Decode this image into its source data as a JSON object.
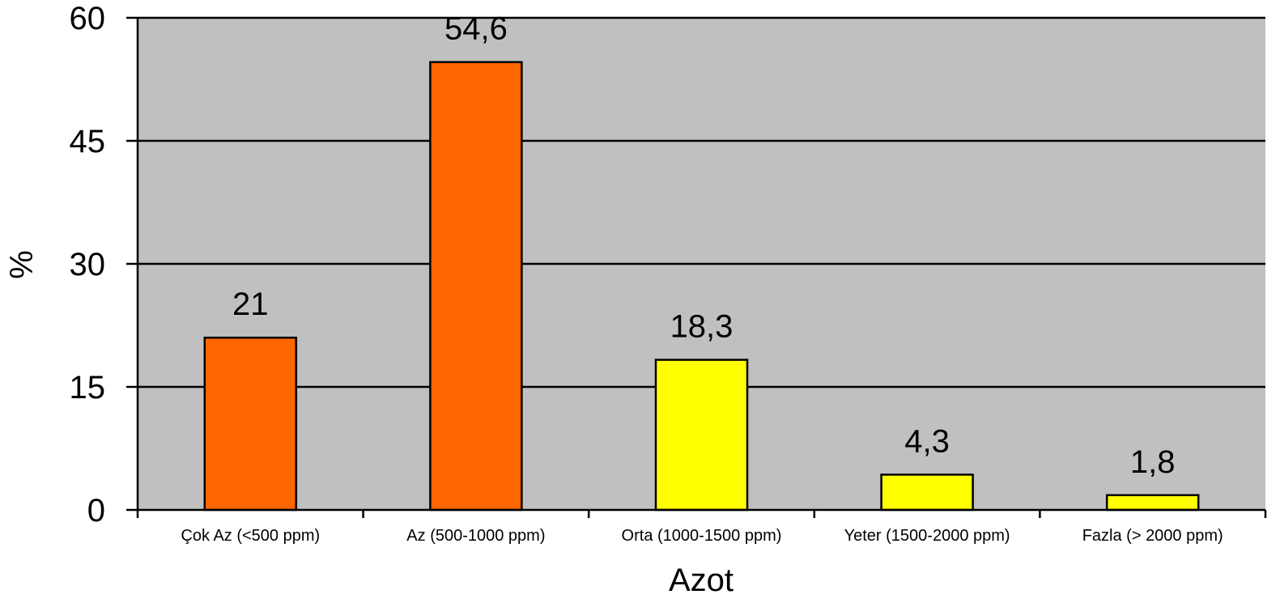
{
  "chart_data": {
    "type": "bar",
    "title": "",
    "xlabel": "Azot",
    "ylabel": "%",
    "ylim": [
      0,
      60
    ],
    "yticks": [
      0,
      15,
      30,
      45,
      60
    ],
    "grid": true,
    "categories": [
      "Çok Az (<500 ppm)",
      "Az (500-1000 ppm)",
      "Orta (1000-1500 ppm)",
      "Yeter (1500-2000 ppm)",
      "Fazla (> 2000 ppm)"
    ],
    "values": [
      21,
      54.6,
      18.3,
      4.3,
      1.8
    ],
    "value_labels": [
      "21",
      "54,6",
      "18,3",
      "4,3",
      "1,8"
    ],
    "bar_colors": [
      "#FF6600",
      "#FF6600",
      "#FFFF00",
      "#FFFF00",
      "#FFFF00"
    ],
    "plot_background": "#C0C0C0",
    "gridline_color": "#000000"
  }
}
